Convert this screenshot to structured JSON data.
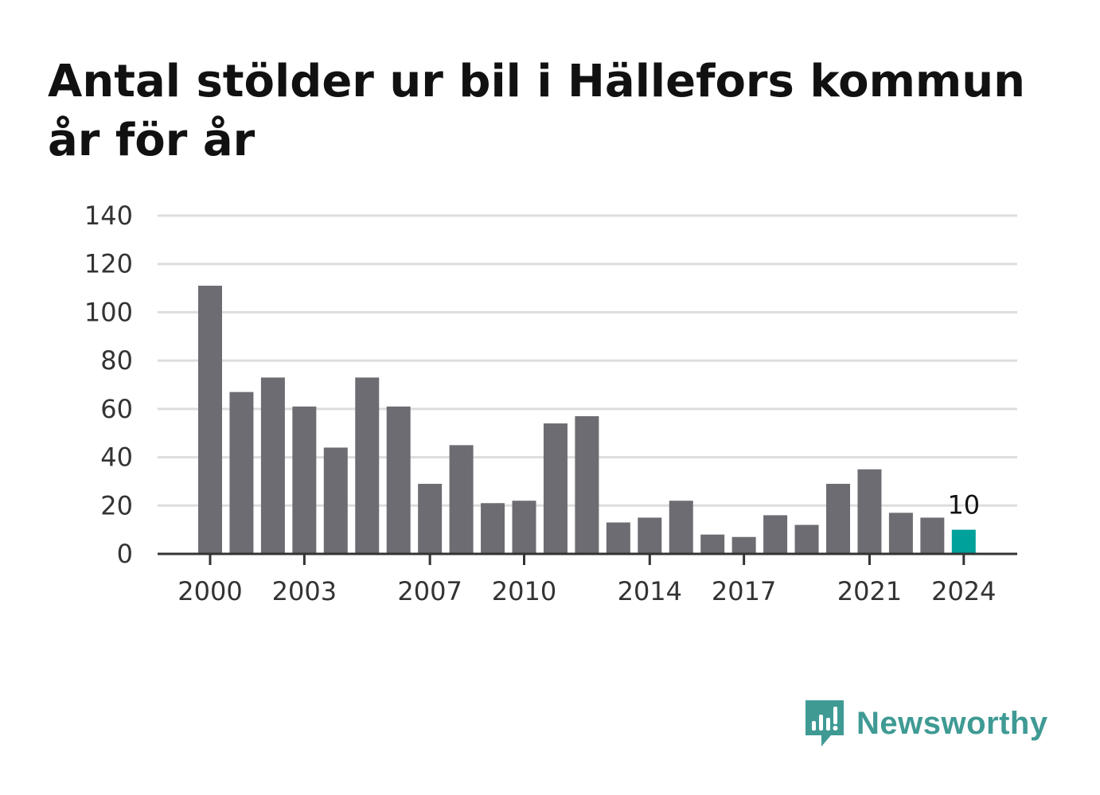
{
  "title_lines": [
    "Antal stölder ur bil i Hällefors kommun",
    "år för år"
  ],
  "chart_data": {
    "type": "bar",
    "title": "Antal stölder ur bil i Hällefors kommun år för år",
    "xlabel": "",
    "ylabel": "",
    "categories": [
      "2000",
      "2001",
      "2002",
      "2003",
      "2004",
      "2005",
      "2006",
      "2007",
      "2008",
      "2009",
      "2010",
      "2011",
      "2012",
      "2013",
      "2014",
      "2015",
      "2016",
      "2017",
      "2018",
      "2019",
      "2020",
      "2021",
      "2022",
      "2023",
      "2024"
    ],
    "values": [
      111,
      67,
      73,
      61,
      44,
      73,
      61,
      29,
      45,
      21,
      22,
      54,
      57,
      13,
      15,
      22,
      8,
      7,
      16,
      12,
      29,
      35,
      17,
      15,
      10
    ],
    "ylim": [
      0,
      140
    ],
    "yticks": [
      0,
      20,
      40,
      60,
      80,
      100,
      120,
      140
    ],
    "xtick_labels": [
      "2000",
      "2003",
      "2007",
      "2010",
      "2014",
      "2017",
      "2021",
      "2024"
    ],
    "highlight": {
      "category": "2024",
      "value": 10,
      "label": "10"
    },
    "colors": {
      "bar": "#6d6c72",
      "highlight": "#00a19a",
      "grid": "#dddddd",
      "axis": "#333333"
    },
    "grid": true
  },
  "brand": {
    "name": "Newsworthy",
    "color": "#3f9a94"
  }
}
